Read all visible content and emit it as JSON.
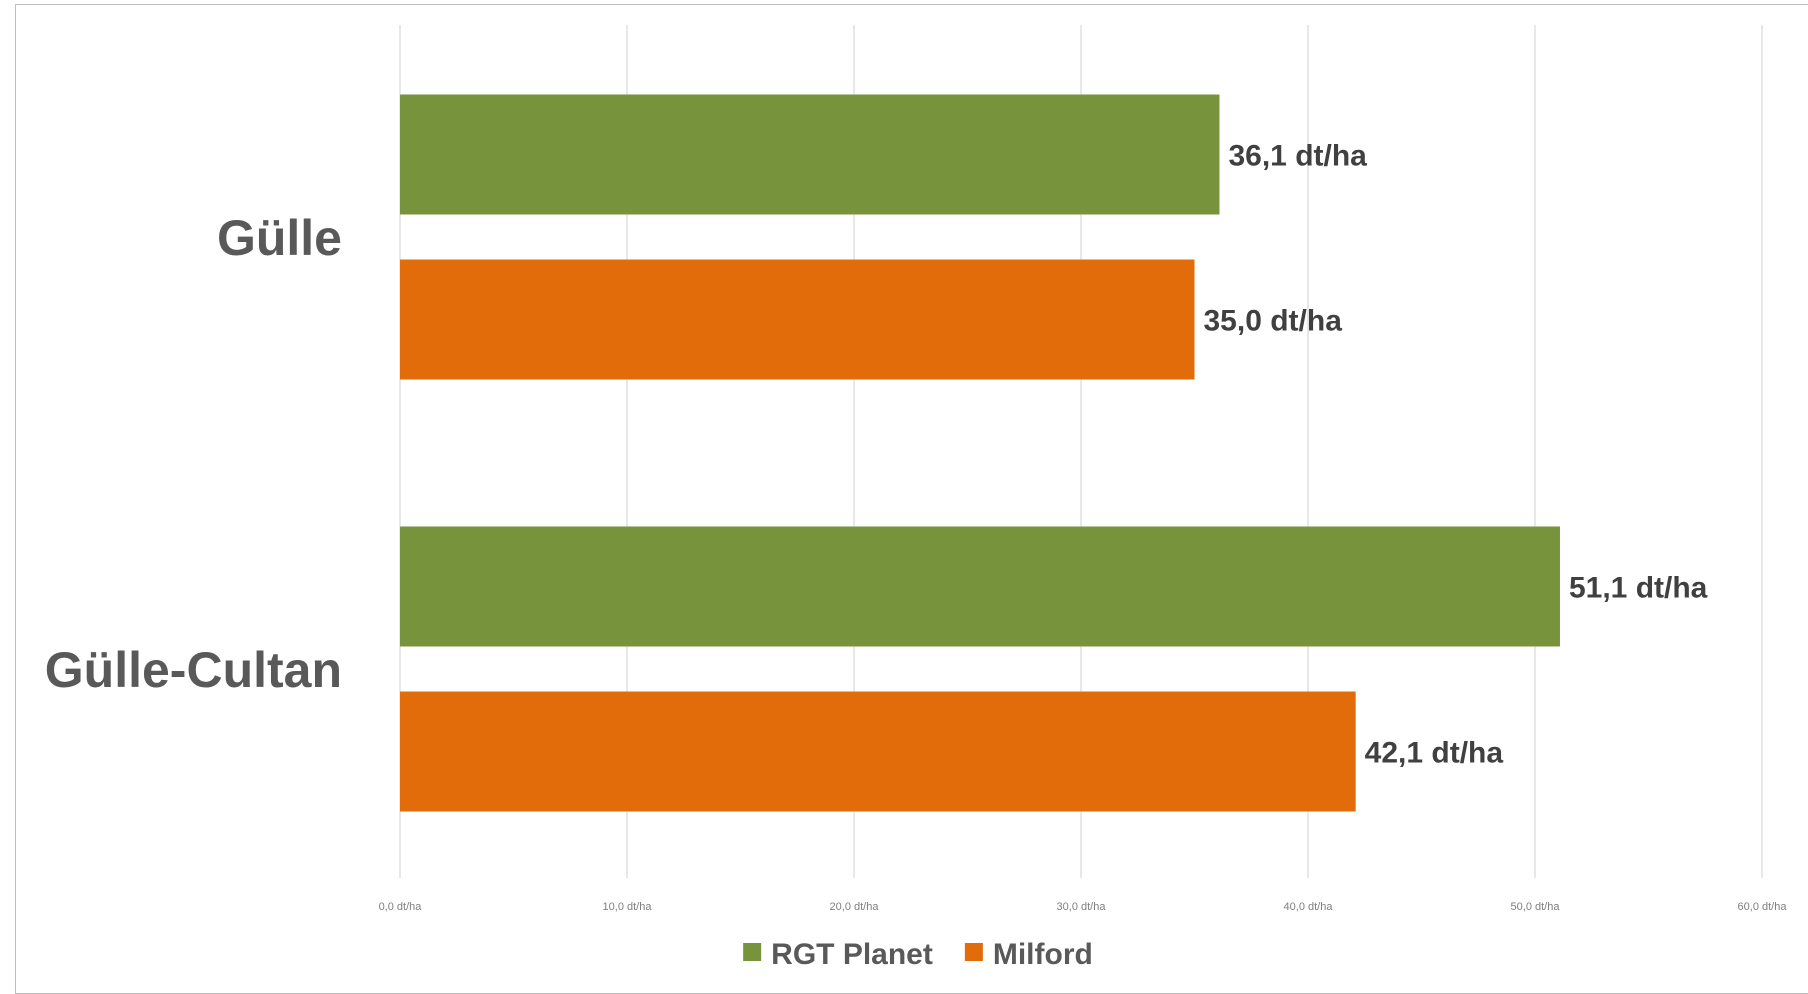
{
  "chart_data": {
    "type": "bar",
    "orientation": "horizontal",
    "categories": [
      "Gülle",
      "Gülle-Cultan"
    ],
    "series": [
      {
        "name": "RGT Planet",
        "color": "#77933c",
        "values": [
          36.1,
          51.1
        ],
        "labels": [
          "36,1 dt/ha",
          "51,1 dt/ha"
        ]
      },
      {
        "name": "Milford",
        "color": "#e36c0a",
        "values": [
          35.0,
          42.1
        ],
        "labels": [
          "35,0 dt/ha",
          "42,1 dt/ha"
        ]
      }
    ],
    "xlim": [
      0,
      60
    ],
    "x_ticks": [
      0,
      10,
      20,
      30,
      40,
      50,
      60
    ],
    "x_tick_labels": [
      "0,0 dt/ha",
      "10,0 dt/ha",
      "20,0 dt/ha",
      "30,0 dt/ha",
      "40,0 dt/ha",
      "50,0 dt/ha",
      "60,0 dt/ha"
    ],
    "grid": true,
    "legend_position": "bottom",
    "title": "",
    "xlabel": "",
    "ylabel": ""
  }
}
